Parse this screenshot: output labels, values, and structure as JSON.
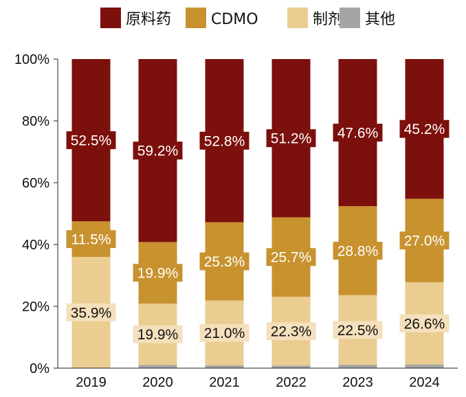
{
  "chart_data": {
    "type": "bar",
    "stacked": true,
    "percent": true,
    "categories": [
      "2019",
      "2020",
      "2021",
      "2022",
      "2023",
      "2024"
    ],
    "series": [
      {
        "name": "原料药",
        "color": "#7c100c",
        "values": [
          52.5,
          59.2,
          52.8,
          51.2,
          47.6,
          45.2
        ],
        "labels": [
          "52.5%",
          "59.2%",
          "52.8%",
          "51.2%",
          "47.6%",
          "45.2%"
        ]
      },
      {
        "name": "CDMO",
        "color": "#c8922f",
        "values": [
          11.5,
          19.9,
          25.3,
          25.7,
          28.8,
          27.0
        ],
        "labels": [
          "11.5%",
          "19.9%",
          "25.3%",
          "25.7%",
          "28.8%",
          "27.0%"
        ]
      },
      {
        "name": "制剂",
        "color": "#ebcd92",
        "values": [
          35.9,
          19.9,
          21.0,
          22.3,
          22.5,
          26.6
        ],
        "labels": [
          "35.9%",
          "19.9%",
          "21.0%",
          "22.3%",
          "22.5%",
          "26.6%"
        ]
      },
      {
        "name": "其他",
        "color": "#a5a5a5",
        "values": [
          0.1,
          1.0,
          0.9,
          0.8,
          1.1,
          1.2
        ]
      }
    ],
    "yticks": [
      "0%",
      "20%",
      "40%",
      "60%",
      "80%",
      "100%"
    ],
    "ylim": [
      0,
      100
    ],
    "legend": "top",
    "grid": false
  }
}
